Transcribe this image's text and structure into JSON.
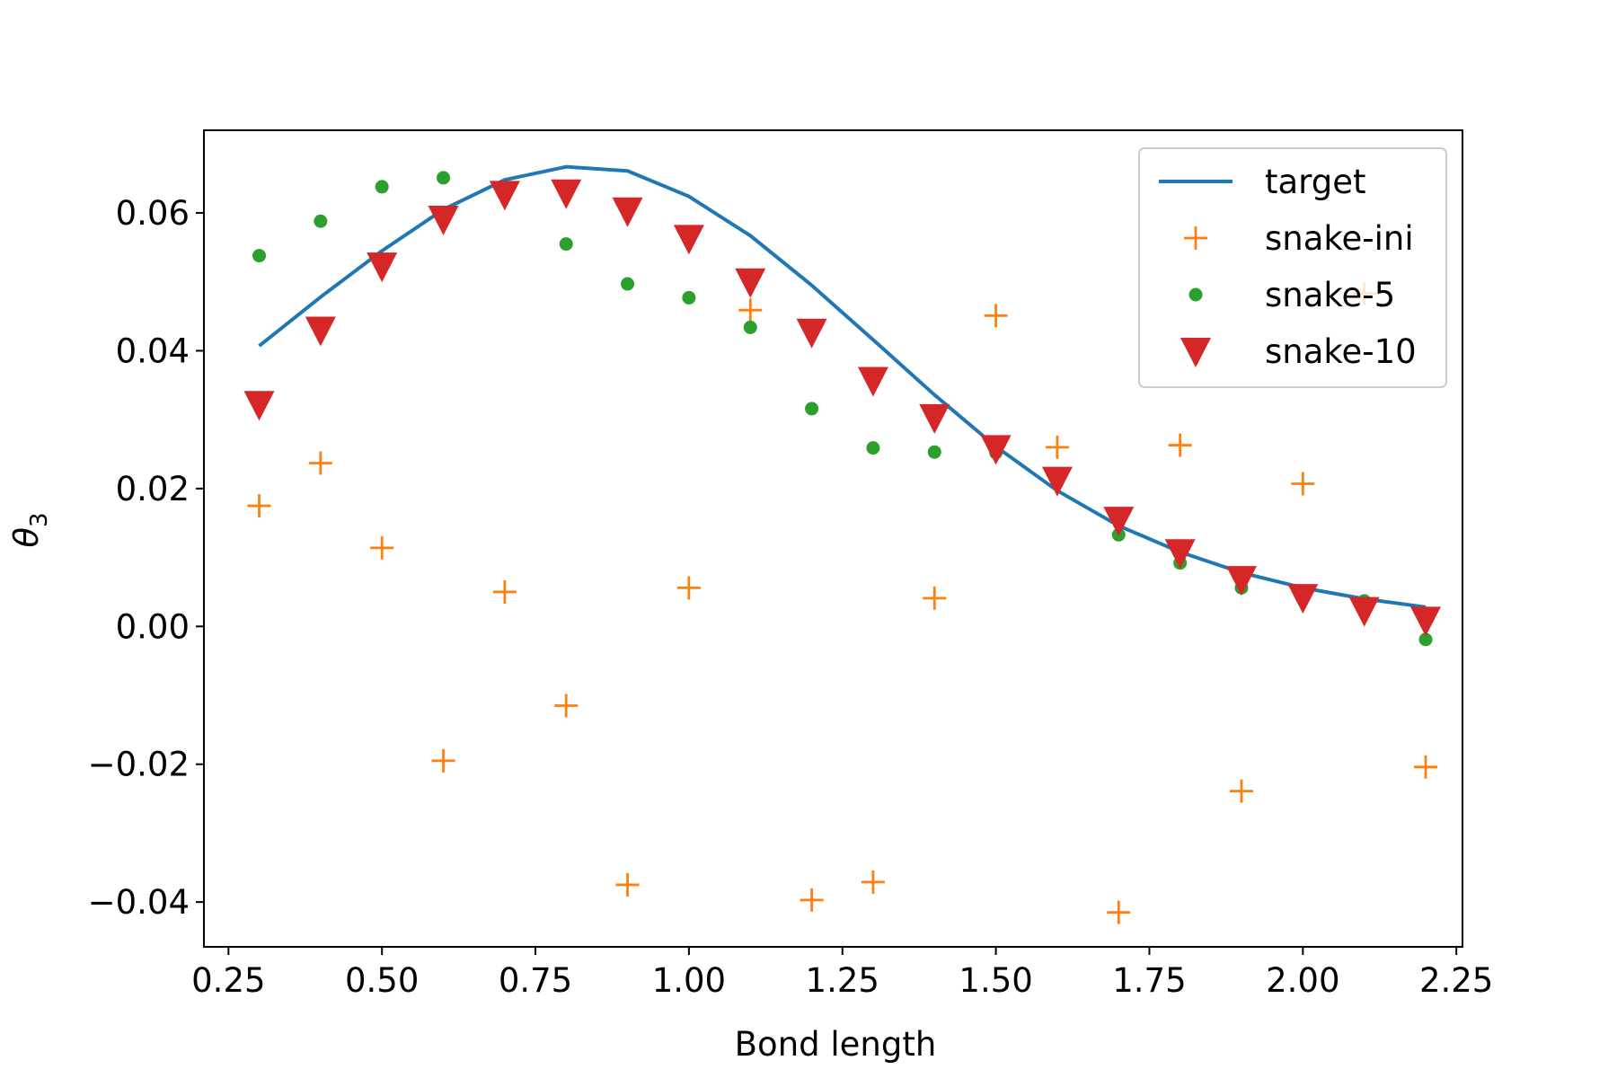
{
  "chart_data": {
    "type": "scatter",
    "title": "",
    "xlabel": "Bond length",
    "ylabel_symbol": "θ",
    "ylabel_subscript": "3",
    "xlim": [
      0.21,
      2.26
    ],
    "ylim": [
      -0.0465,
      0.072
    ],
    "xticks": [
      0.25,
      0.5,
      0.75,
      1.0,
      1.25,
      1.5,
      1.75,
      2.0,
      2.25
    ],
    "xtick_labels": [
      "0.25",
      "0.50",
      "0.75",
      "1.00",
      "1.25",
      "1.50",
      "1.75",
      "2.00",
      "2.25"
    ],
    "yticks": [
      -0.04,
      -0.02,
      0.0,
      0.02,
      0.04,
      0.06
    ],
    "ytick_labels": [
      "−0.04",
      "−0.02",
      "0.00",
      "0.02",
      "0.04",
      "0.06"
    ],
    "grid": false,
    "legend_position": "top-right",
    "x": [
      0.3,
      0.4,
      0.5,
      0.6,
      0.7,
      0.8,
      0.9,
      1.0,
      1.1,
      1.2,
      1.3,
      1.4,
      1.5,
      1.6,
      1.7,
      1.8,
      1.9,
      2.0,
      2.1,
      2.2
    ],
    "series": [
      {
        "name": "target",
        "style": "line",
        "color": "#1f77b4",
        "values": [
          0.0407,
          0.0478,
          0.0545,
          0.0605,
          0.0648,
          0.0667,
          0.0661,
          0.0624,
          0.0567,
          0.0495,
          0.0416,
          0.0336,
          0.0261,
          0.0197,
          0.0146,
          0.0108,
          0.0078,
          0.0056,
          0.004,
          0.0028
        ]
      },
      {
        "name": "snake-ini",
        "style": "plus",
        "color": "#ff7f0e",
        "values": [
          0.0175,
          0.0237,
          0.0114,
          -0.0195,
          0.005,
          -0.0115,
          -0.0375,
          0.0056,
          0.0459,
          -0.0397,
          -0.0371,
          0.0041,
          0.0451,
          0.026,
          -0.0415,
          0.0263,
          -0.0239,
          0.0207,
          0.0483,
          -0.0204
        ]
      },
      {
        "name": "snake-5",
        "style": "dot",
        "color": "#2ca02c",
        "values": [
          0.0538,
          0.0588,
          0.0638,
          0.0651,
          0.0631,
          0.0555,
          0.0497,
          0.0477,
          0.0434,
          0.0316,
          0.0259,
          0.0253,
          0.0252,
          0.021,
          0.0133,
          0.0092,
          0.0056,
          0.0042,
          0.0037,
          -0.0019
        ]
      },
      {
        "name": "snake-10",
        "style": "triangle-down",
        "color": "#d62728",
        "values": [
          0.0322,
          0.043,
          0.0523,
          0.0591,
          0.0627,
          0.0629,
          0.0603,
          0.0563,
          0.05,
          0.0427,
          0.0357,
          0.0303,
          0.0258,
          0.0212,
          0.0154,
          0.0107,
          0.0068,
          0.0042,
          0.0023,
          0.0009
        ]
      }
    ]
  }
}
